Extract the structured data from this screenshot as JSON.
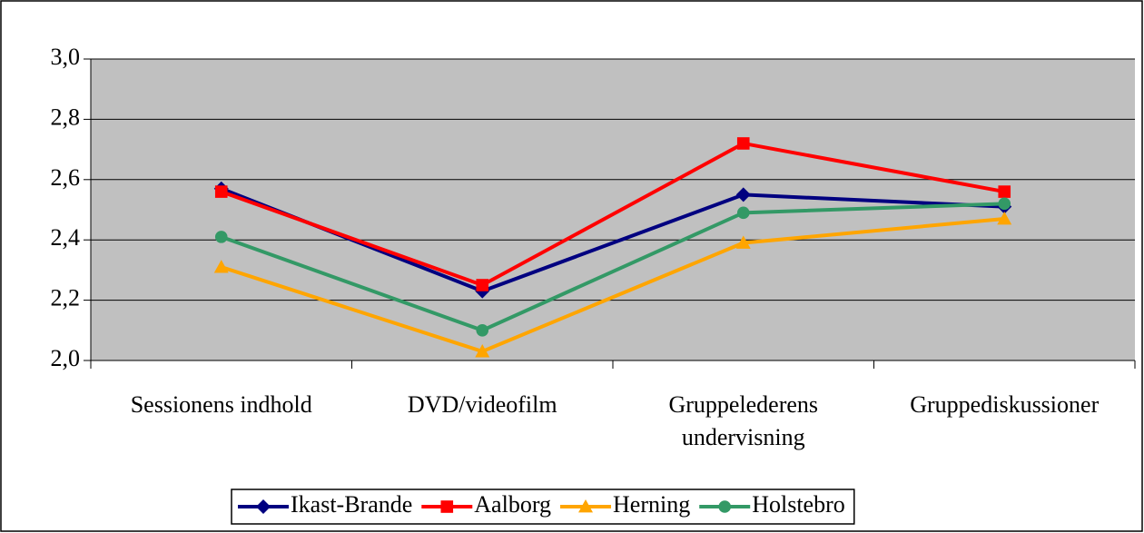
{
  "chart_data": {
    "type": "line",
    "categories": [
      "Sessionens indhold",
      "DVD/videofilm",
      "Gruppelederens undervisning",
      "Gruppediskussioner"
    ],
    "series": [
      {
        "name": "Ikast-Brande",
        "color": "#000080",
        "marker": "diamond",
        "values": [
          2.57,
          2.23,
          2.55,
          2.51
        ]
      },
      {
        "name": "Aalborg",
        "color": "#ff0000",
        "marker": "square",
        "values": [
          2.56,
          2.25,
          2.72,
          2.56
        ]
      },
      {
        "name": "Herning",
        "color": "#ffa500",
        "marker": "triangle",
        "values": [
          2.31,
          2.03,
          2.39,
          2.47
        ]
      },
      {
        "name": "Holstebro",
        "color": "#339966",
        "marker": "circle",
        "values": [
          2.41,
          2.1,
          2.49,
          2.52
        ]
      }
    ],
    "ylim": [
      2.0,
      3.0
    ],
    "yticks": [
      {
        "value": 2.0,
        "label": "2,0"
      },
      {
        "value": 2.2,
        "label": "2,2"
      },
      {
        "value": 2.4,
        "label": "2,4"
      },
      {
        "value": 2.6,
        "label": "2,6"
      },
      {
        "value": 2.8,
        "label": "2,8"
      },
      {
        "value": 3.0,
        "label": "3,0"
      }
    ],
    "grid": true,
    "legend": "bottom",
    "plot_background": "#c0c0c0"
  }
}
